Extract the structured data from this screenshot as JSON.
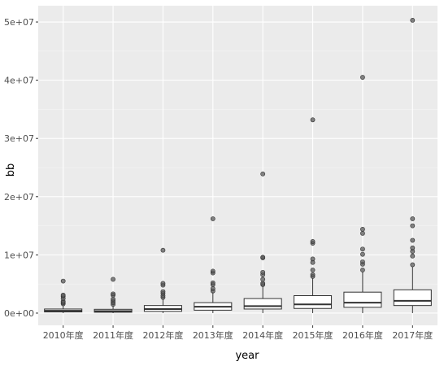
{
  "chart_data": {
    "type": "box",
    "title": "",
    "xlabel": "year",
    "ylabel": "bb",
    "ylim": [
      -2100000,
      52800000
    ],
    "y_ticks": [
      0,
      10000000,
      20000000,
      30000000,
      40000000,
      50000000
    ],
    "y_tick_labels": [
      "0e+00",
      "1e+07",
      "2e+07",
      "3e+07",
      "4e+07",
      "5e+07"
    ],
    "categories": [
      "2010年度",
      "2011年度",
      "2012年度",
      "2013年度",
      "2014年度",
      "2015年度",
      "2016年度",
      "2017年度"
    ],
    "boxes": [
      {
        "q1": 200000,
        "median": 400000,
        "q3": 700000,
        "whisker_low": 0,
        "whisker_high": 1300000,
        "outliers": [
          1600000,
          1800000,
          2000000,
          2500000,
          2900000,
          3100000,
          5500000
        ]
      },
      {
        "q1": 150000,
        "median": 350000,
        "q3": 650000,
        "whisker_low": 0,
        "whisker_high": 1300000,
        "outliers": [
          1500000,
          1800000,
          2100000,
          2400000,
          3100000,
          3300000,
          5800000
        ]
      },
      {
        "q1": 300000,
        "median": 700000,
        "q3": 1300000,
        "whisker_low": 0,
        "whisker_high": 2500000,
        "outliers": [
          2700000,
          3000000,
          3400000,
          3700000,
          4800000,
          5100000,
          10800000
        ]
      },
      {
        "q1": 500000,
        "median": 1100000,
        "q3": 1800000,
        "whisker_low": 0,
        "whisker_high": 3600000,
        "outliers": [
          3800000,
          4200000,
          4900000,
          5200000,
          6900000,
          7200000,
          16200000
        ]
      },
      {
        "q1": 700000,
        "median": 1200000,
        "q3": 2500000,
        "whisker_low": 0,
        "whisker_high": 4600000,
        "outliers": [
          4900000,
          5100000,
          5800000,
          6600000,
          7000000,
          9500000,
          9600000,
          23900000
        ]
      },
      {
        "q1": 800000,
        "median": 1500000,
        "q3": 3000000,
        "whisker_low": 0,
        "whisker_high": 6000000,
        "outliers": [
          6300000,
          6600000,
          7400000,
          8700000,
          9300000,
          12000000,
          12300000,
          33200000
        ]
      },
      {
        "q1": 1000000,
        "median": 1800000,
        "q3": 3600000,
        "whisker_low": 0,
        "whisker_high": 7100000,
        "outliers": [
          7400000,
          8400000,
          8800000,
          10100000,
          11000000,
          13700000,
          14400000,
          40500000
        ]
      },
      {
        "q1": 1300000,
        "median": 2100000,
        "q3": 4000000,
        "whisker_low": 0,
        "whisker_high": 7900000,
        "outliers": [
          8300000,
          9800000,
          10600000,
          11200000,
          12500000,
          15000000,
          16200000,
          50300000
        ]
      }
    ],
    "grid": true,
    "panel_background": "#ebebeb",
    "grid_major_color": "#ffffff",
    "grid_minor_color": "#f5f5f5",
    "box_fill": "#ffffff",
    "box_stroke": "#333333",
    "outlier_color": "#595959",
    "legend": "none"
  }
}
